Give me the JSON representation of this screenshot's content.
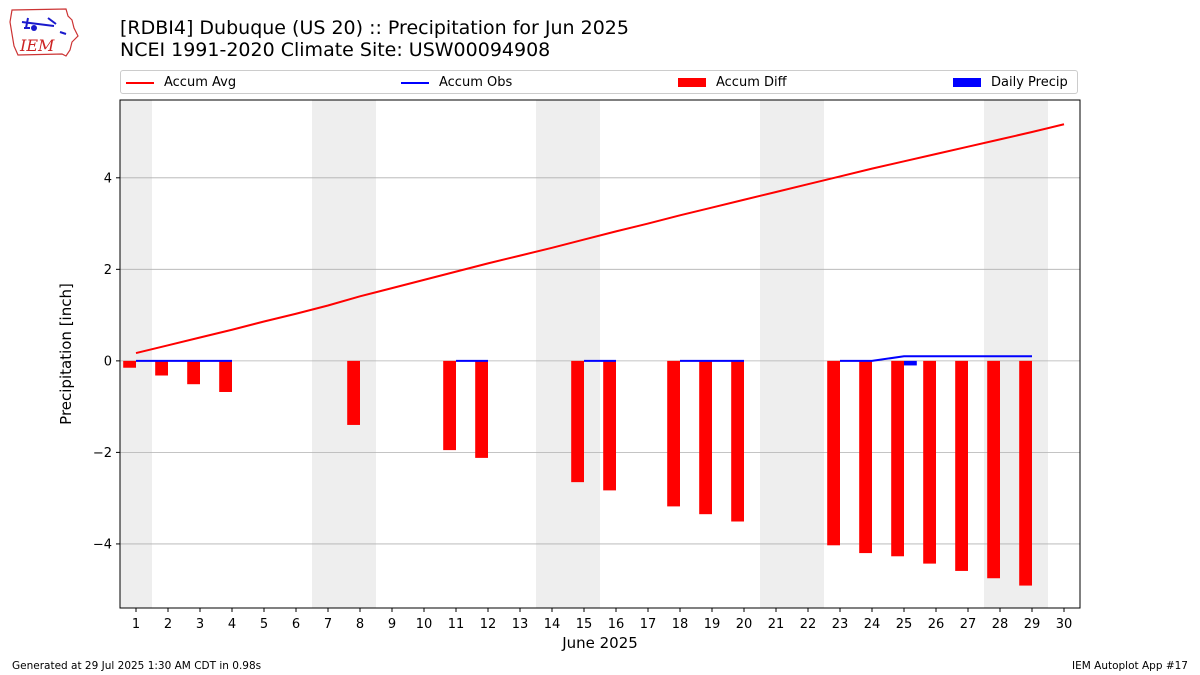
{
  "logo": {
    "text": "IEM"
  },
  "title_line1": "[RDBI4] Dubuque (US 20) :: Precipitation for Jun 2025",
  "title_line2": "NCEI 1991-2020 Climate Site: USW00094908",
  "footer_left": "Generated at 29 Jul 2025 1:30 AM CDT in 0.98s",
  "footer_right": "IEM Autoplot App #17",
  "colors": {
    "accum_avg": "#ff0000",
    "accum_obs": "#0000ff",
    "accum_diff": "#ff0000",
    "daily_precip": "#0000ff",
    "weekend_shade": "#eeeeee",
    "grid": "#b0b0b0"
  },
  "chart_data": {
    "type": "bar",
    "xlabel": "June 2025",
    "ylabel": "Precipitation [inch]",
    "ylim": [
      -5.4,
      5.7
    ],
    "xlim": [
      0.5,
      30.5
    ],
    "yticks": [
      4,
      2,
      0,
      -2,
      -4
    ],
    "ytick_labels": [
      "4",
      "2",
      "0",
      "−2",
      "−4"
    ],
    "grid": "horizontal",
    "legend_placement": "top",
    "legend": [
      "Accum Avg",
      "Accum Obs",
      "Accum Diff",
      "Daily Precip"
    ],
    "weekend_ranges": [
      [
        0.5,
        1.5
      ],
      [
        6.5,
        8.5
      ],
      [
        13.5,
        15.5
      ],
      [
        20.5,
        22.5
      ],
      [
        27.5,
        29.5
      ]
    ],
    "days": [
      1,
      2,
      3,
      4,
      5,
      6,
      7,
      8,
      9,
      10,
      11,
      12,
      13,
      14,
      15,
      16,
      17,
      18,
      19,
      20,
      21,
      22,
      23,
      24,
      25,
      26,
      27,
      28,
      29,
      30
    ],
    "accum_avg": [
      0.17,
      0.34,
      0.51,
      0.68,
      0.86,
      1.03,
      1.21,
      1.41,
      1.59,
      1.77,
      1.95,
      2.13,
      2.3,
      2.47,
      2.65,
      2.83,
      3.0,
      3.18,
      3.35,
      3.52,
      3.69,
      3.86,
      4.03,
      4.2,
      4.36,
      4.52,
      4.68,
      4.84,
      5.0,
      5.17
    ],
    "accum_obs": [
      {
        "x": [
          1,
          2,
          3,
          4
        ],
        "y": [
          0.0,
          0.0,
          0.0,
          0.0
        ]
      },
      {
        "x": [
          11,
          12
        ],
        "y": [
          0.0,
          0.0
        ]
      },
      {
        "x": [
          15,
          16
        ],
        "y": [
          0.0,
          0.0
        ]
      },
      {
        "x": [
          18,
          19,
          20
        ],
        "y": [
          0.0,
          0.0,
          0.0
        ]
      },
      {
        "x": [
          23,
          24,
          25,
          26,
          27,
          28,
          29
        ],
        "y": [
          0.0,
          0.0,
          0.1,
          0.1,
          0.1,
          0.1,
          0.1
        ]
      }
    ],
    "accum_diff": [
      {
        "x": 1,
        "y": -0.15
      },
      {
        "x": 2,
        "y": -0.32
      },
      {
        "x": 3,
        "y": -0.51
      },
      {
        "x": 4,
        "y": -0.68
      },
      {
        "x": 8,
        "y": -1.4
      },
      {
        "x": 11,
        "y": -1.95
      },
      {
        "x": 12,
        "y": -2.12
      },
      {
        "x": 15,
        "y": -2.65
      },
      {
        "x": 16,
        "y": -2.83
      },
      {
        "x": 18,
        "y": -3.18
      },
      {
        "x": 19,
        "y": -3.35
      },
      {
        "x": 20,
        "y": -3.51
      },
      {
        "x": 23,
        "y": -4.03
      },
      {
        "x": 24,
        "y": -4.2
      },
      {
        "x": 25,
        "y": -4.27
      },
      {
        "x": 26,
        "y": -4.43
      },
      {
        "x": 27,
        "y": -4.59
      },
      {
        "x": 28,
        "y": -4.75
      },
      {
        "x": 29,
        "y": -4.91
      }
    ],
    "daily_precip": [
      {
        "x": 25,
        "y": 0.1
      }
    ]
  }
}
